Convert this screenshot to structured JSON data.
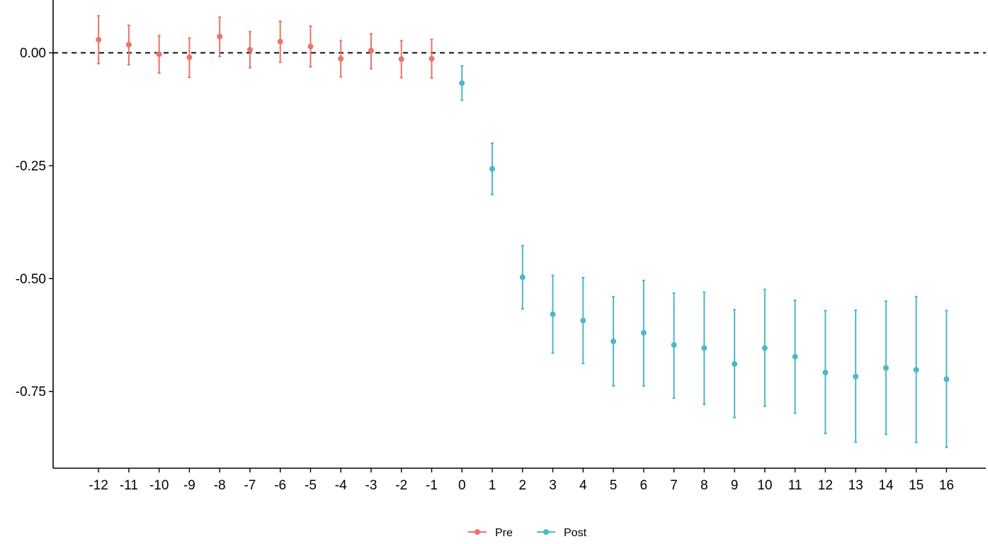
{
  "chart_data": {
    "type": "scatter",
    "title": "",
    "xlabel": "",
    "ylabel": "",
    "x": [
      -12,
      -11,
      -10,
      -9,
      -8,
      -7,
      -6,
      -5,
      -4,
      -3,
      -2,
      -1,
      0,
      1,
      2,
      3,
      4,
      5,
      6,
      7,
      8,
      9,
      10,
      11,
      12,
      13,
      14,
      15,
      16
    ],
    "x_tick_labels": [
      "-12",
      "-11",
      "-10",
      "-9",
      "-8",
      "-7",
      "-6",
      "-5",
      "-4",
      "-3",
      "-2",
      "-1",
      "0",
      "1",
      "2",
      "3",
      "4",
      "5",
      "6",
      "7",
      "8",
      "9",
      "10",
      "11",
      "12",
      "13",
      "14",
      "15",
      "16"
    ],
    "y_ticks": [
      0.0,
      -0.25,
      -0.5,
      -0.75
    ],
    "y_tick_labels": [
      "0.00",
      "-0.25",
      "-0.50",
      "-0.75"
    ],
    "ylim": [
      -0.92,
      0.117
    ],
    "xlim": [
      -13.5,
      17.3
    ],
    "reference_line": {
      "y": 0,
      "style": "dashed",
      "color": "#000000"
    },
    "grid": false,
    "legend": {
      "position": "bottom"
    },
    "series": [
      {
        "name": "Pre",
        "color": "#E8756A",
        "x": [
          -12,
          -11,
          -10,
          -9,
          -8,
          -7,
          -6,
          -5,
          -4,
          -3,
          -2,
          -1
        ],
        "y": [
          0.029,
          0.018,
          -0.003,
          -0.01,
          0.036,
          0.007,
          0.025,
          0.014,
          -0.013,
          0.005,
          -0.014,
          -0.013
        ],
        "lower": [
          -0.024,
          -0.026,
          -0.045,
          -0.054,
          -0.008,
          -0.033,
          -0.021,
          -0.031,
          -0.053,
          -0.035,
          -0.055,
          -0.056
        ],
        "upper": [
          0.082,
          0.061,
          0.038,
          0.033,
          0.079,
          0.047,
          0.07,
          0.059,
          0.027,
          0.042,
          0.027,
          0.03
        ]
      },
      {
        "name": "Post",
        "color": "#4DB8C6",
        "x": [
          0,
          1,
          2,
          3,
          4,
          5,
          6,
          7,
          8,
          9,
          10,
          11,
          12,
          13,
          14,
          15,
          16
        ],
        "y": [
          -0.067,
          -0.257,
          -0.497,
          -0.579,
          -0.593,
          -0.639,
          -0.62,
          -0.647,
          -0.654,
          -0.689,
          -0.654,
          -0.673,
          -0.708,
          -0.717,
          -0.698,
          -0.702,
          -0.723
        ],
        "lower": [
          -0.105,
          -0.314,
          -0.567,
          -0.665,
          -0.688,
          -0.738,
          -0.738,
          -0.765,
          -0.779,
          -0.808,
          -0.783,
          -0.798,
          -0.843,
          -0.862,
          -0.845,
          -0.863,
          -0.874
        ],
        "upper": [
          -0.029,
          -0.2,
          -0.427,
          -0.493,
          -0.498,
          -0.54,
          -0.504,
          -0.532,
          -0.53,
          -0.569,
          -0.524,
          -0.548,
          -0.571,
          -0.57,
          -0.55,
          -0.54,
          -0.571
        ]
      }
    ]
  }
}
